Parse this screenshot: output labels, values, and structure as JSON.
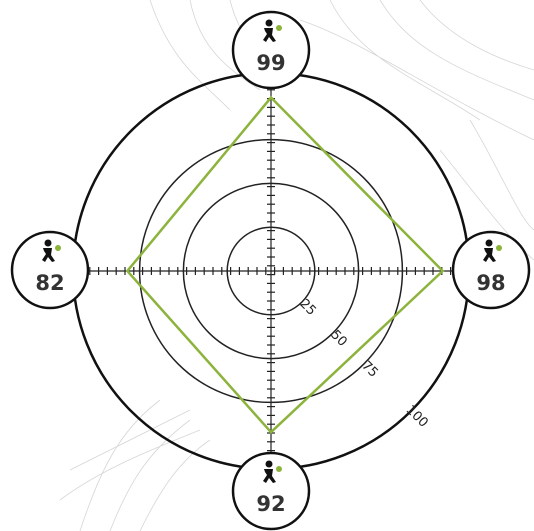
{
  "chart_data": {
    "type": "radar",
    "values": [
      99,
      98,
      92,
      82
    ],
    "color": "#8cb33b",
    "rlim": [
      0,
      113
    ],
    "rticks": [
      25,
      50,
      75,
      100
    ]
  }
}
